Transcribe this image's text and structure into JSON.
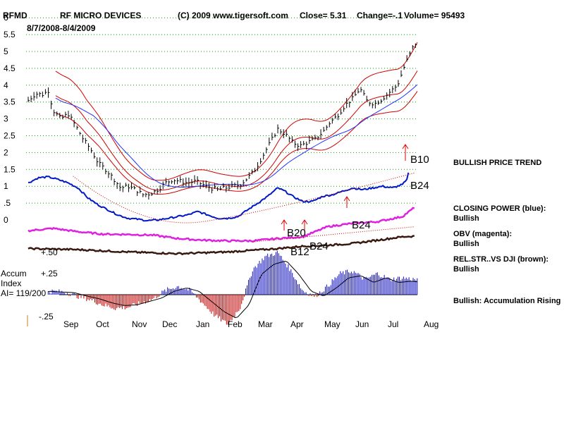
{
  "header": {
    "symbol": "RFMD",
    "company": "RF MICRO DEVICES",
    "copyright": "(C) 2009 www.tigersoft.com",
    "close": "Close=  5.31",
    "change": "Change=-.1",
    "volume": "Volume= 95493",
    "date_range": "8/7/2008-8/4/2009"
  },
  "colors": {
    "price_bars": "#000000",
    "band_red": "#d00000",
    "band_blue": "#2030ff",
    "closing_power": "#0018c8",
    "obv": "#e020e0",
    "rel_str": "#3a1a10",
    "grid": "#00a000",
    "accum_pos": "#1010c0",
    "accum_neg": "#c00000",
    "signal_arrow": "#e00000"
  },
  "right_panel": {
    "price_trend": "BULLISH PRICE TREND",
    "cp_label": "CLOSING POWER (blue):",
    "cp_value": "Bullish",
    "obv_label": "OBV (magenta):",
    "obv_value": "Bullish",
    "rs_label": "REL.STR..VS DJI (brown):",
    "rs_value": "Bullish",
    "accum_note": "Bullish: Accumulation Rising"
  },
  "accum": {
    "title1": "Accum",
    "title2": "Index",
    "ai": "AI= 119/200"
  },
  "signals": [
    "B10",
    "B24",
    "B20",
    "B24",
    "B12",
    "B24"
  ],
  "chart_data": {
    "type": "line",
    "title": "RF MICRO DEVICES",
    "price_axis": {
      "ticks": [
        "0",
        ".5",
        "1",
        "1.5",
        "2",
        "2.5",
        "3",
        "3.5",
        "4",
        "4.5",
        "5",
        "5.5",
        "6"
      ],
      "ylim": [
        0,
        6
      ]
    },
    "accum_axis": {
      "ticks": [
        "+.50",
        "+.25",
        "-.25"
      ]
    },
    "x_labels": [
      "Sep",
      "Oct",
      "Nov",
      "Dec",
      "Jan",
      "Feb",
      "Mar",
      "Apr",
      "May",
      "Jun",
      "Jul",
      "Aug"
    ],
    "price_points": [
      [
        0,
        3.55
      ],
      [
        0.3,
        3.75
      ],
      [
        0.6,
        3.72
      ],
      [
        0.8,
        3.85
      ],
      [
        1.0,
        3.25
      ],
      [
        1.3,
        3.0
      ],
      [
        1.6,
        3.15
      ],
      [
        1.9,
        2.8
      ],
      [
        2.2,
        2.4
      ],
      [
        2.5,
        2.1
      ],
      [
        2.8,
        1.7
      ],
      [
        3.1,
        1.5
      ],
      [
        3.4,
        1.25
      ],
      [
        3.7,
        0.95
      ],
      [
        4.0,
        1.0
      ],
      [
        4.3,
        0.9
      ],
      [
        4.6,
        0.75
      ],
      [
        4.9,
        0.78
      ],
      [
        5.2,
        0.9
      ],
      [
        5.5,
        1.1
      ],
      [
        5.8,
        1.2
      ],
      [
        6.1,
        1.15
      ],
      [
        6.4,
        1.1
      ],
      [
        6.7,
        1.15
      ],
      [
        7.0,
        1.05
      ],
      [
        7.3,
        0.95
      ],
      [
        7.6,
        0.9
      ],
      [
        7.9,
        0.95
      ],
      [
        8.2,
        1.0
      ],
      [
        8.5,
        1.05
      ],
      [
        8.8,
        1.25
      ],
      [
        9.1,
        1.5
      ],
      [
        9.4,
        1.9
      ],
      [
        9.7,
        2.3
      ],
      [
        10.0,
        2.7
      ],
      [
        10.3,
        2.55
      ],
      [
        10.6,
        2.3
      ],
      [
        10.9,
        2.2
      ],
      [
        11.2,
        2.3
      ],
      [
        11.5,
        2.4
      ],
      [
        11.8,
        2.6
      ],
      [
        12.1,
        2.9
      ],
      [
        12.4,
        3.1
      ],
      [
        12.7,
        3.4
      ],
      [
        13.0,
        3.6
      ],
      [
        13.3,
        3.9
      ],
      [
        13.6,
        3.5
      ],
      [
        13.9,
        3.45
      ],
      [
        14.2,
        3.6
      ],
      [
        14.5,
        3.8
      ],
      [
        14.8,
        4.0
      ],
      [
        15.1,
        4.6
      ],
      [
        15.4,
        5.1
      ],
      [
        15.6,
        5.3
      ]
    ],
    "series": [
      {
        "name": "CLOSING POWER (blue)",
        "values": [
          [
            0,
            1.1
          ],
          [
            0.4,
            1.25
          ],
          [
            0.8,
            1.28
          ],
          [
            1.2,
            1.2
          ],
          [
            1.6,
            1.1
          ],
          [
            2.0,
            0.95
          ],
          [
            2.4,
            0.65
          ],
          [
            2.8,
            0.45
          ],
          [
            3.2,
            0.3
          ],
          [
            3.6,
            0.15
          ],
          [
            4.0,
            0.05
          ],
          [
            4.4,
            0.02
          ],
          [
            4.8,
            -0.02
          ],
          [
            5.2,
            0.0
          ],
          [
            5.6,
            0.05
          ],
          [
            6.0,
            0.1
          ],
          [
            6.4,
            0.15
          ],
          [
            6.8,
            0.25
          ],
          [
            7.2,
            0.15
          ],
          [
            7.6,
            0.05
          ],
          [
            8.0,
            0.05
          ],
          [
            8.4,
            0.1
          ],
          [
            8.8,
            0.3
          ],
          [
            9.2,
            0.5
          ],
          [
            9.6,
            0.7
          ],
          [
            10.0,
            0.95
          ],
          [
            10.3,
            0.85
          ],
          [
            10.6,
            0.7
          ],
          [
            11.0,
            0.55
          ],
          [
            11.4,
            0.55
          ],
          [
            11.8,
            0.7
          ],
          [
            12.2,
            0.75
          ],
          [
            12.6,
            0.85
          ],
          [
            13.0,
            0.95
          ],
          [
            13.4,
            0.9
          ],
          [
            13.8,
            0.95
          ],
          [
            14.2,
            1.0
          ],
          [
            14.6,
            0.95
          ],
          [
            15.0,
            1.05
          ],
          [
            15.2,
            1.2
          ],
          [
            15.3,
            1.75
          ]
        ]
      },
      {
        "name": "OBV (magenta)",
        "values": [
          [
            0,
            -0.32
          ],
          [
            1,
            -0.25
          ],
          [
            2,
            -0.35
          ],
          [
            3,
            -0.42
          ],
          [
            4,
            -0.43
          ],
          [
            5,
            -0.45
          ],
          [
            6,
            -0.55
          ],
          [
            7,
            -0.6
          ],
          [
            8,
            -0.62
          ],
          [
            9,
            -0.62
          ],
          [
            10,
            -0.55
          ],
          [
            11,
            -0.5
          ],
          [
            12,
            -0.2
          ],
          [
            13,
            -0.1
          ],
          [
            14,
            -0.05
          ],
          [
            15,
            0.1
          ],
          [
            15.5,
            0.38
          ]
        ]
      },
      {
        "name": "REL.STR..VS DJI (brown)",
        "values": [
          [
            0,
            -0.85
          ],
          [
            2,
            -0.88
          ],
          [
            4,
            -0.95
          ],
          [
            6,
            -1.0
          ],
          [
            8,
            -0.95
          ],
          [
            10,
            -0.85
          ],
          [
            11,
            -0.78
          ],
          [
            12,
            -0.75
          ],
          [
            13,
            -0.7
          ],
          [
            14,
            -0.6
          ],
          [
            15,
            -0.5
          ],
          [
            15.5,
            -0.48
          ]
        ]
      }
    ],
    "accum_values": [
      [
        0,
        0.02
      ],
      [
        0.5,
        0.05
      ],
      [
        1,
        0.04
      ],
      [
        1.5,
        0.03
      ],
      [
        2,
        -0.02
      ],
      [
        2.5,
        -0.06
      ],
      [
        3,
        -0.12
      ],
      [
        3.5,
        -0.16
      ],
      [
        4,
        -0.15
      ],
      [
        4.5,
        -0.1
      ],
      [
        5,
        -0.05
      ],
      [
        5.5,
        0.05
      ],
      [
        6,
        0.1
      ],
      [
        6.5,
        0.05
      ],
      [
        7,
        -0.1
      ],
      [
        7.5,
        -0.25
      ],
      [
        8,
        -0.35
      ],
      [
        8.5,
        -0.15
      ],
      [
        9,
        0.3
      ],
      [
        9.5,
        0.45
      ],
      [
        10,
        0.5
      ],
      [
        10.5,
        0.3
      ],
      [
        11,
        0.05
      ],
      [
        11.5,
        -0.02
      ],
      [
        12,
        0.1
      ],
      [
        12.5,
        0.25
      ],
      [
        13,
        0.28
      ],
      [
        13.5,
        0.18
      ],
      [
        14,
        0.25
      ],
      [
        14.5,
        0.18
      ],
      [
        15,
        0.2
      ],
      [
        15.5,
        0.18
      ]
    ],
    "signal_markers": [
      "B10",
      "B24",
      "B20",
      "B24",
      "B12",
      "B24"
    ],
    "grid": true
  }
}
